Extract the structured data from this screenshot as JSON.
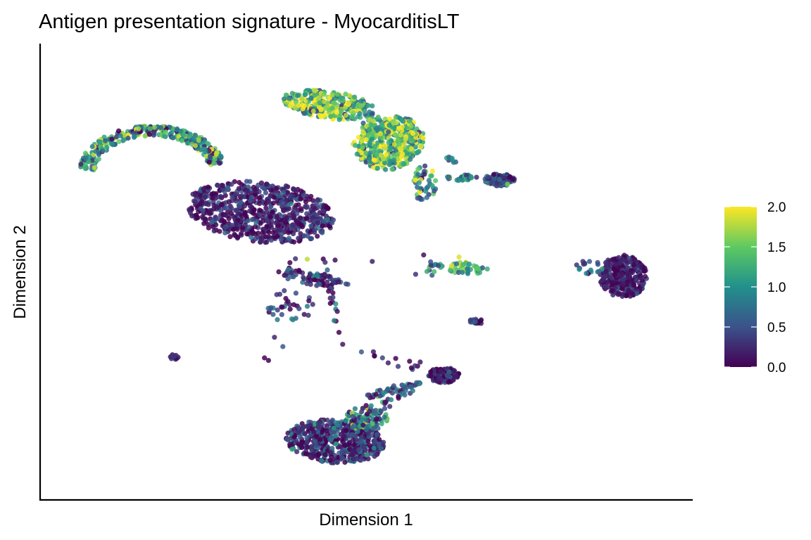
{
  "chart_data": {
    "type": "scatter",
    "title": "Antigen presentation signature - MyocarditisLT",
    "xlabel": "Dimension 1",
    "ylabel": "Dimension 2",
    "xlim": [
      0,
      100
    ],
    "ylim": [
      0,
      100
    ],
    "axis_ticks_shown": false,
    "grid": false,
    "legend": {
      "type": "colorbar",
      "placement": "right",
      "min": 0.0,
      "max": 2.0,
      "ticks": [
        "0.0",
        "0.5",
        "1.0",
        "1.5",
        "2.0"
      ],
      "tick_values": [
        0.0,
        0.5,
        1.0,
        1.5,
        2.0
      ],
      "colorscale": "viridis"
    },
    "colormap_stops": [
      "#440154",
      "#3b528b",
      "#21918c",
      "#5ec962",
      "#fde725"
    ],
    "clusters": [
      {
        "cx": 33.0,
        "cy": 64.0,
        "rx": 12.0,
        "ry": 7.0,
        "rot": -12,
        "n": 700,
        "mean": 0.2,
        "spread": 0.25
      },
      {
        "cx": 41.5,
        "cy": 48.5,
        "rx": 6.5,
        "ry": 1.5,
        "rot": -20,
        "n": 70,
        "mean": 0.35,
        "spread": 0.35
      },
      {
        "cx": 45.0,
        "cy": 10.5,
        "rx": 8.0,
        "ry": 5.0,
        "rot": -8,
        "n": 520,
        "mean": 0.3,
        "spread": 0.35
      },
      {
        "cx": 50.0,
        "cy": 16.0,
        "rx": 3.5,
        "ry": 3.0,
        "rot": 0,
        "n": 90,
        "mean": 0.8,
        "spread": 0.5
      },
      {
        "cx": 62.5,
        "cy": 26.0,
        "rx": 2.5,
        "ry": 1.8,
        "rot": 0,
        "n": 120,
        "mean": 0.2,
        "spread": 0.25
      },
      {
        "cx": 54.0,
        "cy": 22.5,
        "rx": 5.0,
        "ry": 0.8,
        "rot": 20,
        "n": 40,
        "mean": 0.4,
        "spread": 0.4
      },
      {
        "cx": 91.5,
        "cy": 49.0,
        "rx": 3.8,
        "ry": 5.0,
        "rot": 0,
        "n": 300,
        "mean": 0.15,
        "spread": 0.2
      },
      {
        "cx": 86.0,
        "cy": 51.0,
        "rx": 2.5,
        "ry": 1.5,
        "rot": 0,
        "n": 18,
        "mean": 0.4,
        "spread": 0.4
      },
      {
        "cx": 66.5,
        "cy": 51.0,
        "rx": 3.3,
        "ry": 1.5,
        "rot": 0,
        "n": 45,
        "mean": 1.2,
        "spread": 0.4
      },
      {
        "cx": 61.0,
        "cy": 50.5,
        "rx": 1.5,
        "ry": 2.2,
        "rot": 0,
        "n": 14,
        "mean": 0.9,
        "spread": 0.5
      },
      {
        "cx": 67.8,
        "cy": 38.5,
        "rx": 1.2,
        "ry": 0.6,
        "rot": 0,
        "n": 25,
        "mean": 0.3,
        "spread": 0.3
      },
      {
        "cx": 19.0,
        "cy": 30.5,
        "rx": 0.9,
        "ry": 1.0,
        "rot": -40,
        "n": 12,
        "mean": 0.2,
        "spread": 0.2
      },
      {
        "cx": 38.0,
        "cy": 42.0,
        "rx": 4.0,
        "ry": 3.5,
        "rot": 0,
        "n": 30,
        "mean": 0.35,
        "spread": 0.35
      },
      {
        "cx": 44.0,
        "cy": 89.0,
        "rx": 7.5,
        "ry": 3.2,
        "rot": -12,
        "n": 300,
        "mean": 1.4,
        "spread": 0.55
      },
      {
        "cx": 54.0,
        "cy": 80.0,
        "rx": 5.0,
        "ry": 6.5,
        "rot": -25,
        "n": 320,
        "mean": 1.3,
        "spread": 0.55
      },
      {
        "cx": 59.5,
        "cy": 70.5,
        "rx": 1.8,
        "ry": 4.5,
        "rot": 0,
        "n": 45,
        "mean": 1.0,
        "spread": 0.6
      },
      {
        "cx": 65.5,
        "cy": 72.0,
        "rx": 2.5,
        "ry": 0.7,
        "rot": 0,
        "n": 30,
        "mean": 1.0,
        "spread": 0.5
      },
      {
        "cx": 71.5,
        "cy": 71.5,
        "rx": 2.5,
        "ry": 1.4,
        "rot": 0,
        "n": 90,
        "mean": 0.45,
        "spread": 0.4
      },
      {
        "cx": 64.0,
        "cy": 76.5,
        "rx": 1.0,
        "ry": 1.0,
        "rot": 0,
        "n": 8,
        "mean": 0.6,
        "spread": 0.4
      },
      {
        "cx": 53.0,
        "cy": 81.0,
        "rx": 5.0,
        "ry": 6.0,
        "rot": -20,
        "n": 150,
        "mean": 1.6,
        "spread": 0.45
      }
    ],
    "arcs": [
      {
        "cx": 15.5,
        "cy": 73.5,
        "r": 10.5,
        "rs": 0.9,
        "a0": 10,
        "a1": 178,
        "w": 1.3,
        "n": 300,
        "mean": 1.0,
        "spread": 0.55
      }
    ],
    "paths": [
      {
        "x0": 43.0,
        "y0": 54.0,
        "x1": 46.0,
        "y1": 32.5,
        "n": 22,
        "jit": 0.6,
        "mean": 0.3,
        "spread": 0.35
      },
      {
        "x0": 38.0,
        "y0": 52.0,
        "x1": 35.5,
        "y1": 29.0,
        "n": 10,
        "jit": 1.6,
        "mean": 0.3,
        "spread": 0.3
      },
      {
        "x0": 48.5,
        "y0": 31.0,
        "x1": 58.5,
        "y1": 28.0,
        "n": 14,
        "jit": 1.0,
        "mean": 0.3,
        "spread": 0.35
      },
      {
        "x0": 48.5,
        "y0": 14.5,
        "x1": 57.5,
        "y1": 23.5,
        "n": 30,
        "jit": 0.8,
        "mean": 0.45,
        "spread": 0.45
      }
    ],
    "points": [
      {
        "x": 40.5,
        "y": 53.0,
        "v": 1.8
      },
      {
        "x": 45.0,
        "y": 52.8,
        "v": 0.1
      },
      {
        "x": 33.6,
        "y": 30.0,
        "v": 0.0
      },
      {
        "x": 51.0,
        "y": 52.5,
        "v": 0.2
      },
      {
        "x": 59.3,
        "y": 54.0,
        "v": 0.1
      },
      {
        "x": 65.0,
        "y": 53.5,
        "v": 1.9
      },
      {
        "x": 58.0,
        "y": 49.5,
        "v": 0.3
      },
      {
        "x": 85.0,
        "y": 52.5,
        "v": 0.3
      },
      {
        "x": 40.0,
        "y": 87.0,
        "v": 0.7
      }
    ]
  }
}
